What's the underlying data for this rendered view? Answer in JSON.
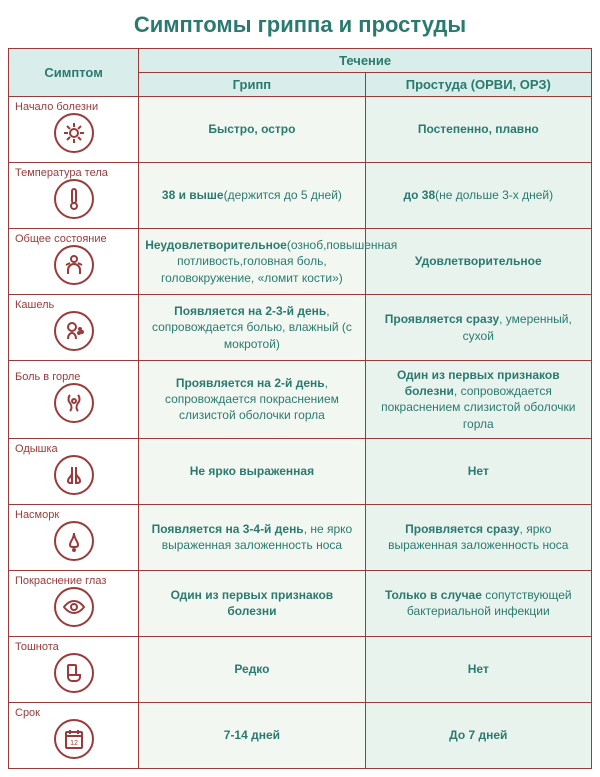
{
  "title": "Симптомы гриппа и простуды",
  "headers": {
    "symptom": "Симптом",
    "course": "Течение",
    "flu": "Грипп",
    "cold": "Простуда (ОРВИ, ОРЗ)"
  },
  "col_widths": {
    "sym": 130,
    "flu": 226,
    "cold": 226
  },
  "colors": {
    "border": "#9a3b3b",
    "header_bg": "#d9eeea",
    "text_header": "#2a7a6f",
    "flu_bg": "#f2f8f1",
    "cold_bg": "#e8f3ee",
    "icon": "#9a3b3b"
  },
  "rows": [
    {
      "label": "Начало болезни",
      "icon": "virus",
      "flu_bold": "Быстро, остро",
      "flu_sub": "",
      "cold_bold": "Постепенно, плавно",
      "cold_sub": ""
    },
    {
      "label": "Температура тела",
      "icon": "thermometer",
      "flu_bold": "38 и выше",
      "flu_sub": "(держится до 5 дней)",
      "cold_bold": "до 38",
      "cold_sub": "(не дольше 3-х дней)"
    },
    {
      "label": "Общее состояние",
      "icon": "person",
      "flu_bold": "Неудовлетворительное",
      "flu_sub": "(озноб,повышенная потливость,головная боль, головокружение, «ломит кости»)",
      "cold_bold": "Удовлетворительное",
      "cold_sub": ""
    },
    {
      "label": "Кашель",
      "icon": "cough",
      "flu_bold": "Появляется на 2-3-й день",
      "flu_sub": ", сопровождается болью, влажный  (с мокротой)",
      "cold_bold": "Проявляется сразу",
      "cold_sub": ", умеренный, сухой"
    },
    {
      "label": "Боль в горле",
      "icon": "throat",
      "flu_bold": "Проявляется на 2-й день",
      "flu_sub": ", сопровождается покраснением слизистой оболочки горла",
      "cold_bold": "Один из первых признаков болезни",
      "cold_sub": ", сопровождается покраснением слизистой оболочки горла"
    },
    {
      "label": "Одышка",
      "icon": "lungs",
      "flu_bold": "Не ярко выраженная",
      "flu_sub": "",
      "cold_bold": "Нет",
      "cold_sub": ""
    },
    {
      "label": "Насморк",
      "icon": "nose",
      "flu_bold": "Появляется на 3-4-й день",
      "flu_sub": ", не ярко выраженная заложенность носа",
      "cold_bold": "Проявляется сразу",
      "cold_sub": ", ярко выраженная заложенность носа"
    },
    {
      "label": "Покраснение глаз",
      "icon": "eye",
      "flu_bold": "Один из первых признаков болезни",
      "flu_sub": "",
      "cold_bold": "Только в случае",
      "cold_sub": " сопутствующей бактериальной инфекции"
    },
    {
      "label": "Тошнота",
      "icon": "toilet",
      "flu_bold": "Редко",
      "flu_sub": "",
      "cold_bold": "Нет",
      "cold_sub": ""
    },
    {
      "label": "Срок",
      "icon": "calendar",
      "flu_bold": "7-14  дней",
      "flu_sub": "",
      "cold_bold": "До 7 дней",
      "cold_sub": ""
    }
  ]
}
